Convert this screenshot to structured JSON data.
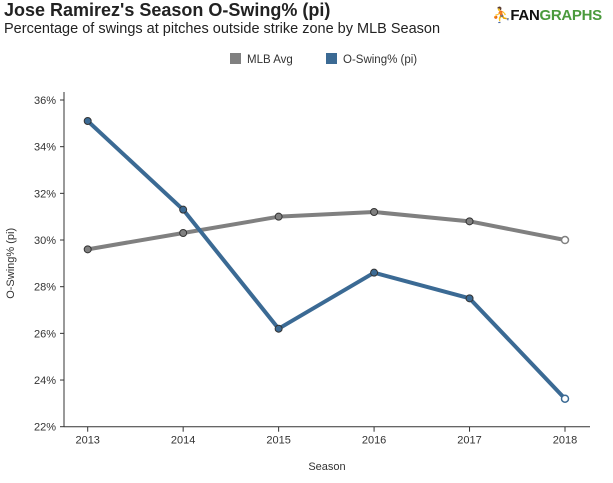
{
  "logo": {
    "text_a": "FAN",
    "text_b": "GRAPHS"
  },
  "chart_data": {
    "type": "line",
    "title": "Jose Ramirez's Season O-Swing% (pi)",
    "subtitle": "Percentage of swings at pitches outside strike zone by MLB Season",
    "xlabel": "Season",
    "ylabel": "O-Swing% (pi)",
    "x": [
      2013,
      2014,
      2015,
      2016,
      2017,
      2018
    ],
    "xtick_labels": [
      "2013",
      "2014",
      "2015",
      "2016",
      "2017",
      "2018"
    ],
    "ylim": [
      22,
      36
    ],
    "yticks": [
      22,
      24,
      26,
      28,
      30,
      32,
      34,
      36
    ],
    "ytick_labels": [
      "22%",
      "24%",
      "26%",
      "28%",
      "30%",
      "32%",
      "34%",
      "36%"
    ],
    "grid": false,
    "legend_position": "top-center",
    "series": [
      {
        "name": "MLB Avg",
        "color": "#808080",
        "values": [
          29.6,
          30.3,
          31.0,
          31.2,
          30.8,
          30.0
        ]
      },
      {
        "name": "O-Swing% (pi)",
        "color": "#3b6a94",
        "values": [
          35.1,
          31.3,
          26.2,
          28.6,
          27.5,
          23.2
        ]
      }
    ]
  }
}
